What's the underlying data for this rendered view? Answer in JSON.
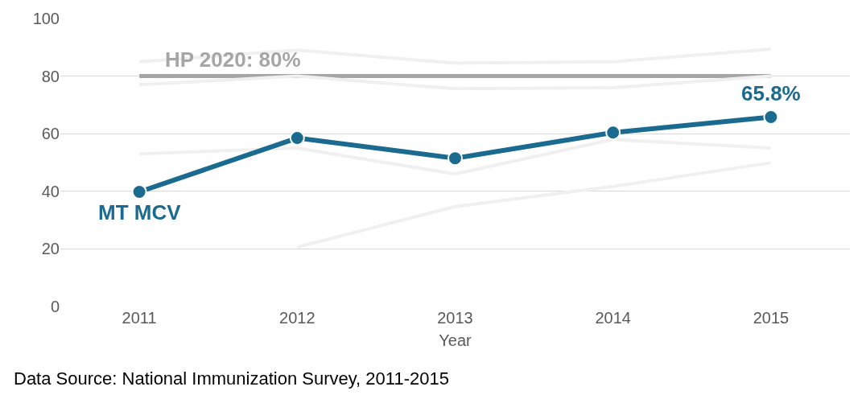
{
  "chart_data": {
    "type": "line",
    "xlabel": "Year",
    "categories": [
      "2011",
      "2012",
      "2013",
      "2014",
      "2015"
    ],
    "ylim": [
      0,
      100
    ],
    "yticks": [
      0,
      20,
      40,
      60,
      80,
      100
    ],
    "grid": "y",
    "legend": false,
    "series": [
      {
        "color": "#f0f0f0",
        "marker": "none",
        "values": [
          85,
          89,
          84.5,
          85,
          89.4
        ]
      },
      {
        "color": "#f0f0f0",
        "marker": "none",
        "values": [
          77,
          80,
          75.6,
          76,
          80
        ]
      },
      {
        "color": "#f0f0f0",
        "marker": "none",
        "values": [
          53,
          55,
          46,
          58,
          55
        ]
      },
      {
        "color": "#f0f0f0",
        "marker": "none",
        "values": [
          null,
          20.6,
          34.7,
          41.7,
          49.9
        ]
      },
      {
        "name": "MT MCV",
        "color": "#1b6a8f",
        "marker": "circle",
        "values": [
          39.8,
          58.5,
          51.5,
          60.4,
          65.8
        ],
        "value_labels": [
          null,
          null,
          null,
          null,
          "65.8%"
        ]
      }
    ],
    "ref_lines": [
      {
        "axis": "y",
        "value": 80,
        "label": "HP 2020: 80%",
        "color": "#a6a6a6"
      }
    ],
    "annotations": [
      "Data Source: National Immunization Survey, 2011-2015"
    ]
  }
}
